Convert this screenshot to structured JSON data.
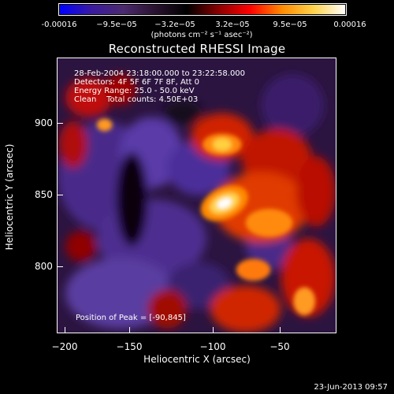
{
  "colorbar": {
    "labels": [
      "-0.00016",
      "−9.5e−05",
      "−3.2e−05",
      "3.2e−05",
      "9.5e−05",
      "0.00016"
    ],
    "units": "(photons cm⁻² s⁻¹ asec⁻²)",
    "colormap": [
      "#0000ff",
      "#3a1aa0",
      "#4b2a6e",
      "#2a1230",
      "#000000",
      "#8a0000",
      "#ff0000",
      "#ff8a00",
      "#ffd24a",
      "#ffffff"
    ]
  },
  "title": "Reconstructed RHESSI Image",
  "info": {
    "time_range": "28-Feb-2004 23:18:00.000 to 23:22:58.000",
    "detectors": "Detectors: 4F 5F 6F 7F 8F, Att 0",
    "energy": "Energy Range: 25.0 - 50.0 keV",
    "clean": "Clean    Total counts: 4.50E+03"
  },
  "peak": "Position of Peak = [-90,845]",
  "axes": {
    "xlabel": "Heliocentric X (arcsec)",
    "ylabel": "Heliocentric Y (arcsec)",
    "xticks": [
      "−200",
      "−150",
      "−100",
      "−50"
    ],
    "yticks": [
      "900",
      "850",
      "800"
    ]
  },
  "timestamp": "23-Jun-2013 09:57"
}
